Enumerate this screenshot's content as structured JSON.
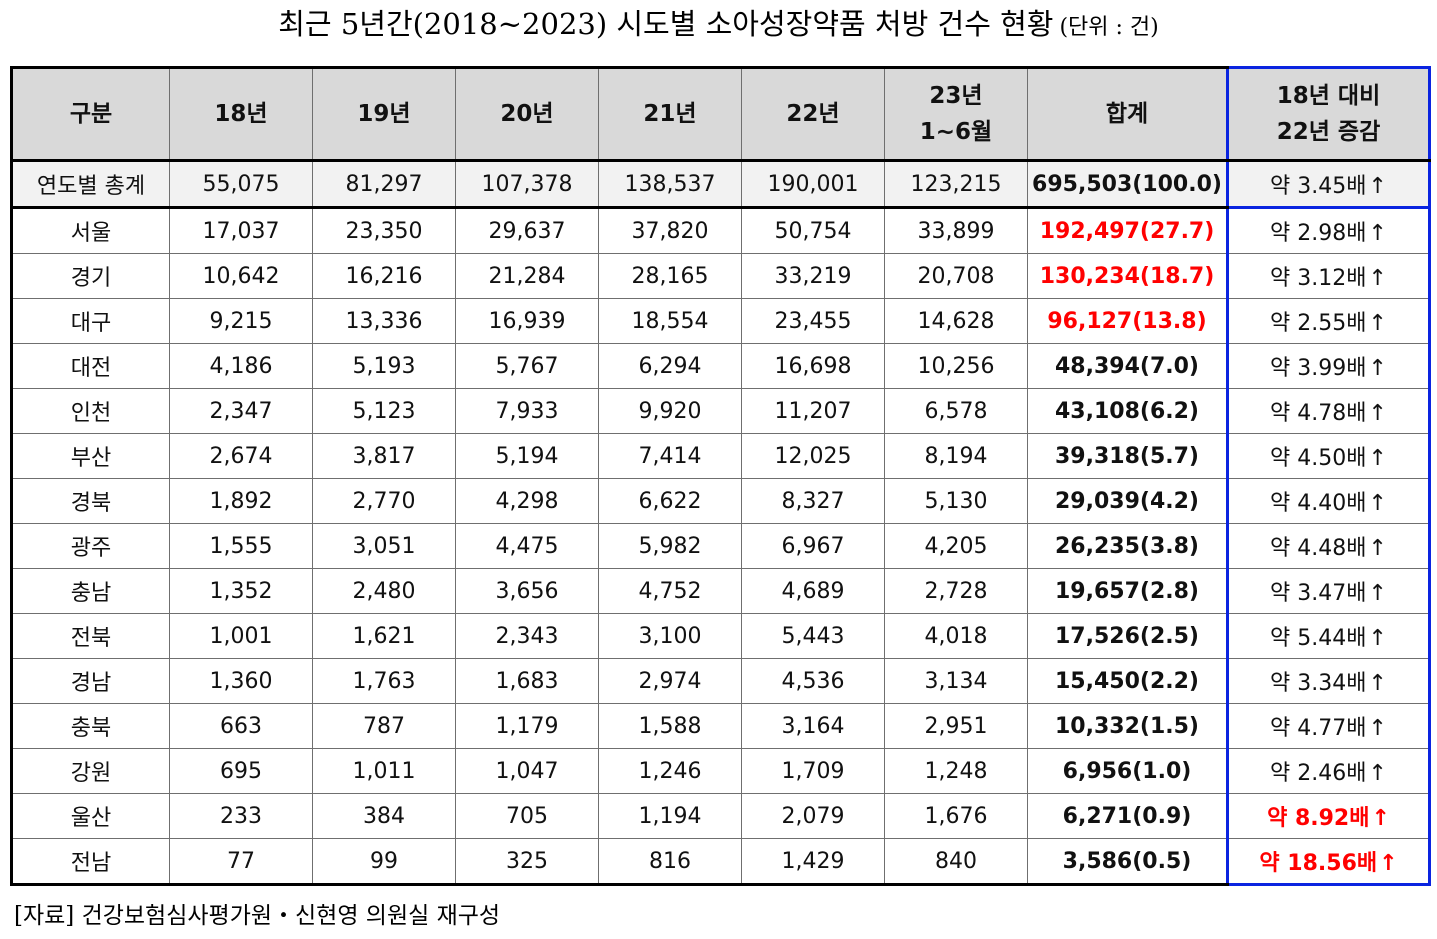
{
  "title": "최근 5년간(2018~2023) 시도별 소아성장약품 처방 건수 현황",
  "unit": "(단위 : 건)",
  "columns": {
    "category": "구분",
    "y18": "18년",
    "y19": "19년",
    "y20": "20년",
    "y21": "21년",
    "y22": "22년",
    "y23_line1": "23년",
    "y23_line2": "1~6월",
    "total": "합계",
    "change_line1": "18년 대비",
    "change_line2": "22년 증감"
  },
  "colors": {
    "highlight": "#ff0000",
    "accent_border": "#0a24e0",
    "header_bg": "#d9d9d9"
  },
  "rows": [
    {
      "region": "연도별 총계",
      "values": [
        "55,075",
        "81,297",
        "107,378",
        "138,537",
        "190,001",
        "123,215"
      ],
      "total": "695,503(100.0)",
      "growth": "약 3.45배",
      "arrow": "↑",
      "total_hl": false,
      "growth_hl": false
    },
    {
      "region": "서울",
      "values": [
        "17,037",
        "23,350",
        "29,637",
        "37,820",
        "50,754",
        "33,899"
      ],
      "total": "192,497(27.7)",
      "growth": "약 2.98배",
      "arrow": "↑",
      "total_hl": true,
      "growth_hl": false
    },
    {
      "region": "경기",
      "values": [
        "10,642",
        "16,216",
        "21,284",
        "28,165",
        "33,219",
        "20,708"
      ],
      "total": "130,234(18.7)",
      "growth": "약 3.12배",
      "arrow": "↑",
      "total_hl": true,
      "growth_hl": false
    },
    {
      "region": "대구",
      "values": [
        "9,215",
        "13,336",
        "16,939",
        "18,554",
        "23,455",
        "14,628"
      ],
      "total": "96,127(13.8)",
      "growth": "약 2.55배",
      "arrow": "↑",
      "total_hl": true,
      "growth_hl": false
    },
    {
      "region": "대전",
      "values": [
        "4,186",
        "5,193",
        "5,767",
        "6,294",
        "16,698",
        "10,256"
      ],
      "total": "48,394(7.0)",
      "growth": "약 3.99배",
      "arrow": "↑",
      "total_hl": false,
      "growth_hl": false
    },
    {
      "region": "인천",
      "values": [
        "2,347",
        "5,123",
        "7,933",
        "9,920",
        "11,207",
        "6,578"
      ],
      "total": "43,108(6.2)",
      "growth": "약 4.78배",
      "arrow": "↑",
      "total_hl": false,
      "growth_hl": false
    },
    {
      "region": "부산",
      "values": [
        "2,674",
        "3,817",
        "5,194",
        "7,414",
        "12,025",
        "8,194"
      ],
      "total": "39,318(5.7)",
      "growth": "약 4.50배",
      "arrow": "↑",
      "total_hl": false,
      "growth_hl": false
    },
    {
      "region": "경북",
      "values": [
        "1,892",
        "2,770",
        "4,298",
        "6,622",
        "8,327",
        "5,130"
      ],
      "total": "29,039(4.2)",
      "growth": "약 4.40배",
      "arrow": "↑",
      "total_hl": false,
      "growth_hl": false
    },
    {
      "region": "광주",
      "values": [
        "1,555",
        "3,051",
        "4,475",
        "5,982",
        "6,967",
        "4,205"
      ],
      "total": "26,235(3.8)",
      "growth": "약 4.48배",
      "arrow": "↑",
      "total_hl": false,
      "growth_hl": false
    },
    {
      "region": "충남",
      "values": [
        "1,352",
        "2,480",
        "3,656",
        "4,752",
        "4,689",
        "2,728"
      ],
      "total": "19,657(2.8)",
      "growth": "약 3.47배",
      "arrow": "↑",
      "total_hl": false,
      "growth_hl": false
    },
    {
      "region": "전북",
      "values": [
        "1,001",
        "1,621",
        "2,343",
        "3,100",
        "5,443",
        "4,018"
      ],
      "total": "17,526(2.5)",
      "growth": "약 5.44배",
      "arrow": "↑",
      "total_hl": false,
      "growth_hl": false
    },
    {
      "region": "경남",
      "values": [
        "1,360",
        "1,763",
        "1,683",
        "2,974",
        "4,536",
        "3,134"
      ],
      "total": "15,450(2.2)",
      "growth": "약 3.34배",
      "arrow": "↑",
      "total_hl": false,
      "growth_hl": false
    },
    {
      "region": "충북",
      "values": [
        "663",
        "787",
        "1,179",
        "1,588",
        "3,164",
        "2,951"
      ],
      "total": "10,332(1.5)",
      "growth": "약 4.77배",
      "arrow": "↑",
      "total_hl": false,
      "growth_hl": false
    },
    {
      "region": "강원",
      "values": [
        "695",
        "1,011",
        "1,047",
        "1,246",
        "1,709",
        "1,248"
      ],
      "total": "6,956(1.0)",
      "growth": "약 2.46배",
      "arrow": "↑",
      "total_hl": false,
      "growth_hl": false
    },
    {
      "region": "울산",
      "values": [
        "233",
        "384",
        "705",
        "1,194",
        "2,079",
        "1,676"
      ],
      "total": "6,271(0.9)",
      "growth": "약 8.92배",
      "arrow": "↑",
      "total_hl": false,
      "growth_hl": true
    },
    {
      "region": "전남",
      "values": [
        "77",
        "99",
        "325",
        "816",
        "1,429",
        "840"
      ],
      "total": "3,586(0.5)",
      "growth": "약 18.56배",
      "arrow": "↑",
      "total_hl": false,
      "growth_hl": true
    }
  ],
  "source": "[자료] 건강보험심사평가원・신현영 의원실 재구성"
}
